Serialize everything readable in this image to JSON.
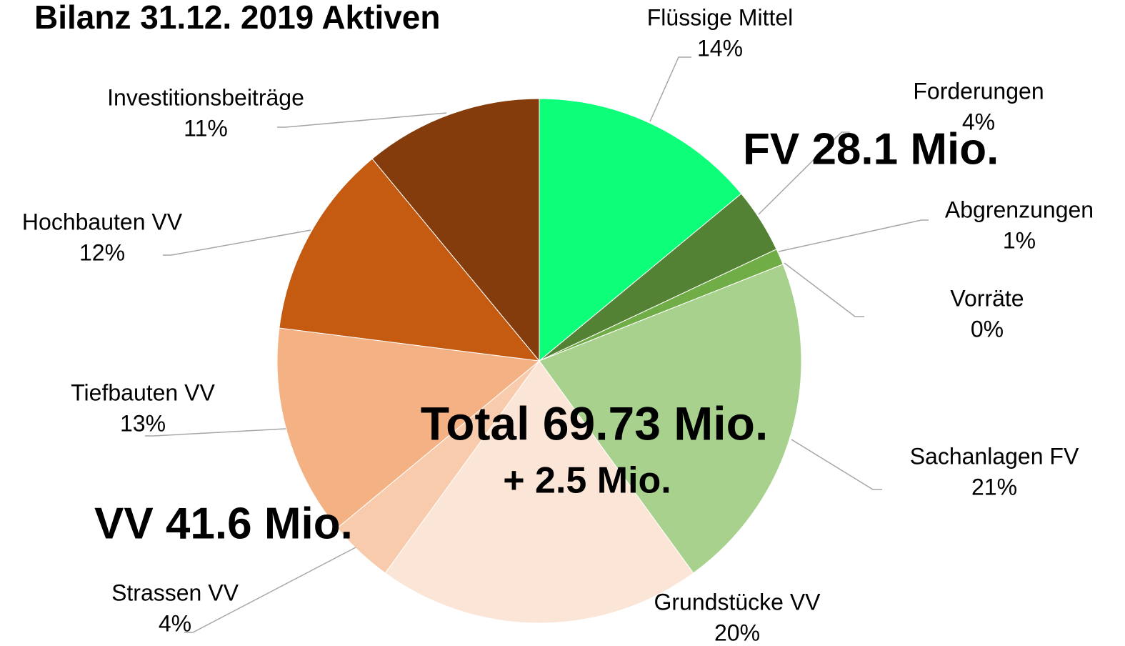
{
  "chart_data": {
    "type": "pie",
    "title": "Bilanz 31.12. 2019 Aktiven",
    "categories": [
      "Flüssige Mittel",
      "Forderungen",
      "Abgrenzungen",
      "Vorräte",
      "Sachanlagen FV",
      "Grundstücke VV",
      "Strassen VV",
      "Tiefbauten VV",
      "Hochbauten VV",
      "Investitionsbeiträge"
    ],
    "values": [
      14,
      4,
      1,
      0,
      21,
      20,
      4,
      13,
      12,
      11
    ],
    "value_labels": [
      "14%",
      "4%",
      "1%",
      "0%",
      "21%",
      "20%",
      "4%",
      "13%",
      "12%",
      "11%"
    ],
    "colors": [
      "#0dff7a",
      "#548235",
      "#70ad47",
      "#8fbf6a",
      "#a9d18e",
      "#fbe5d6",
      "#f8cbad",
      "#f4b183",
      "#c55a11",
      "#843c0c"
    ],
    "annotations": [
      "FV 28.1 Mio.",
      "Total 69.73 Mio.",
      "+ 2.5 Mio.",
      "VV 41.6 Mio."
    ]
  }
}
